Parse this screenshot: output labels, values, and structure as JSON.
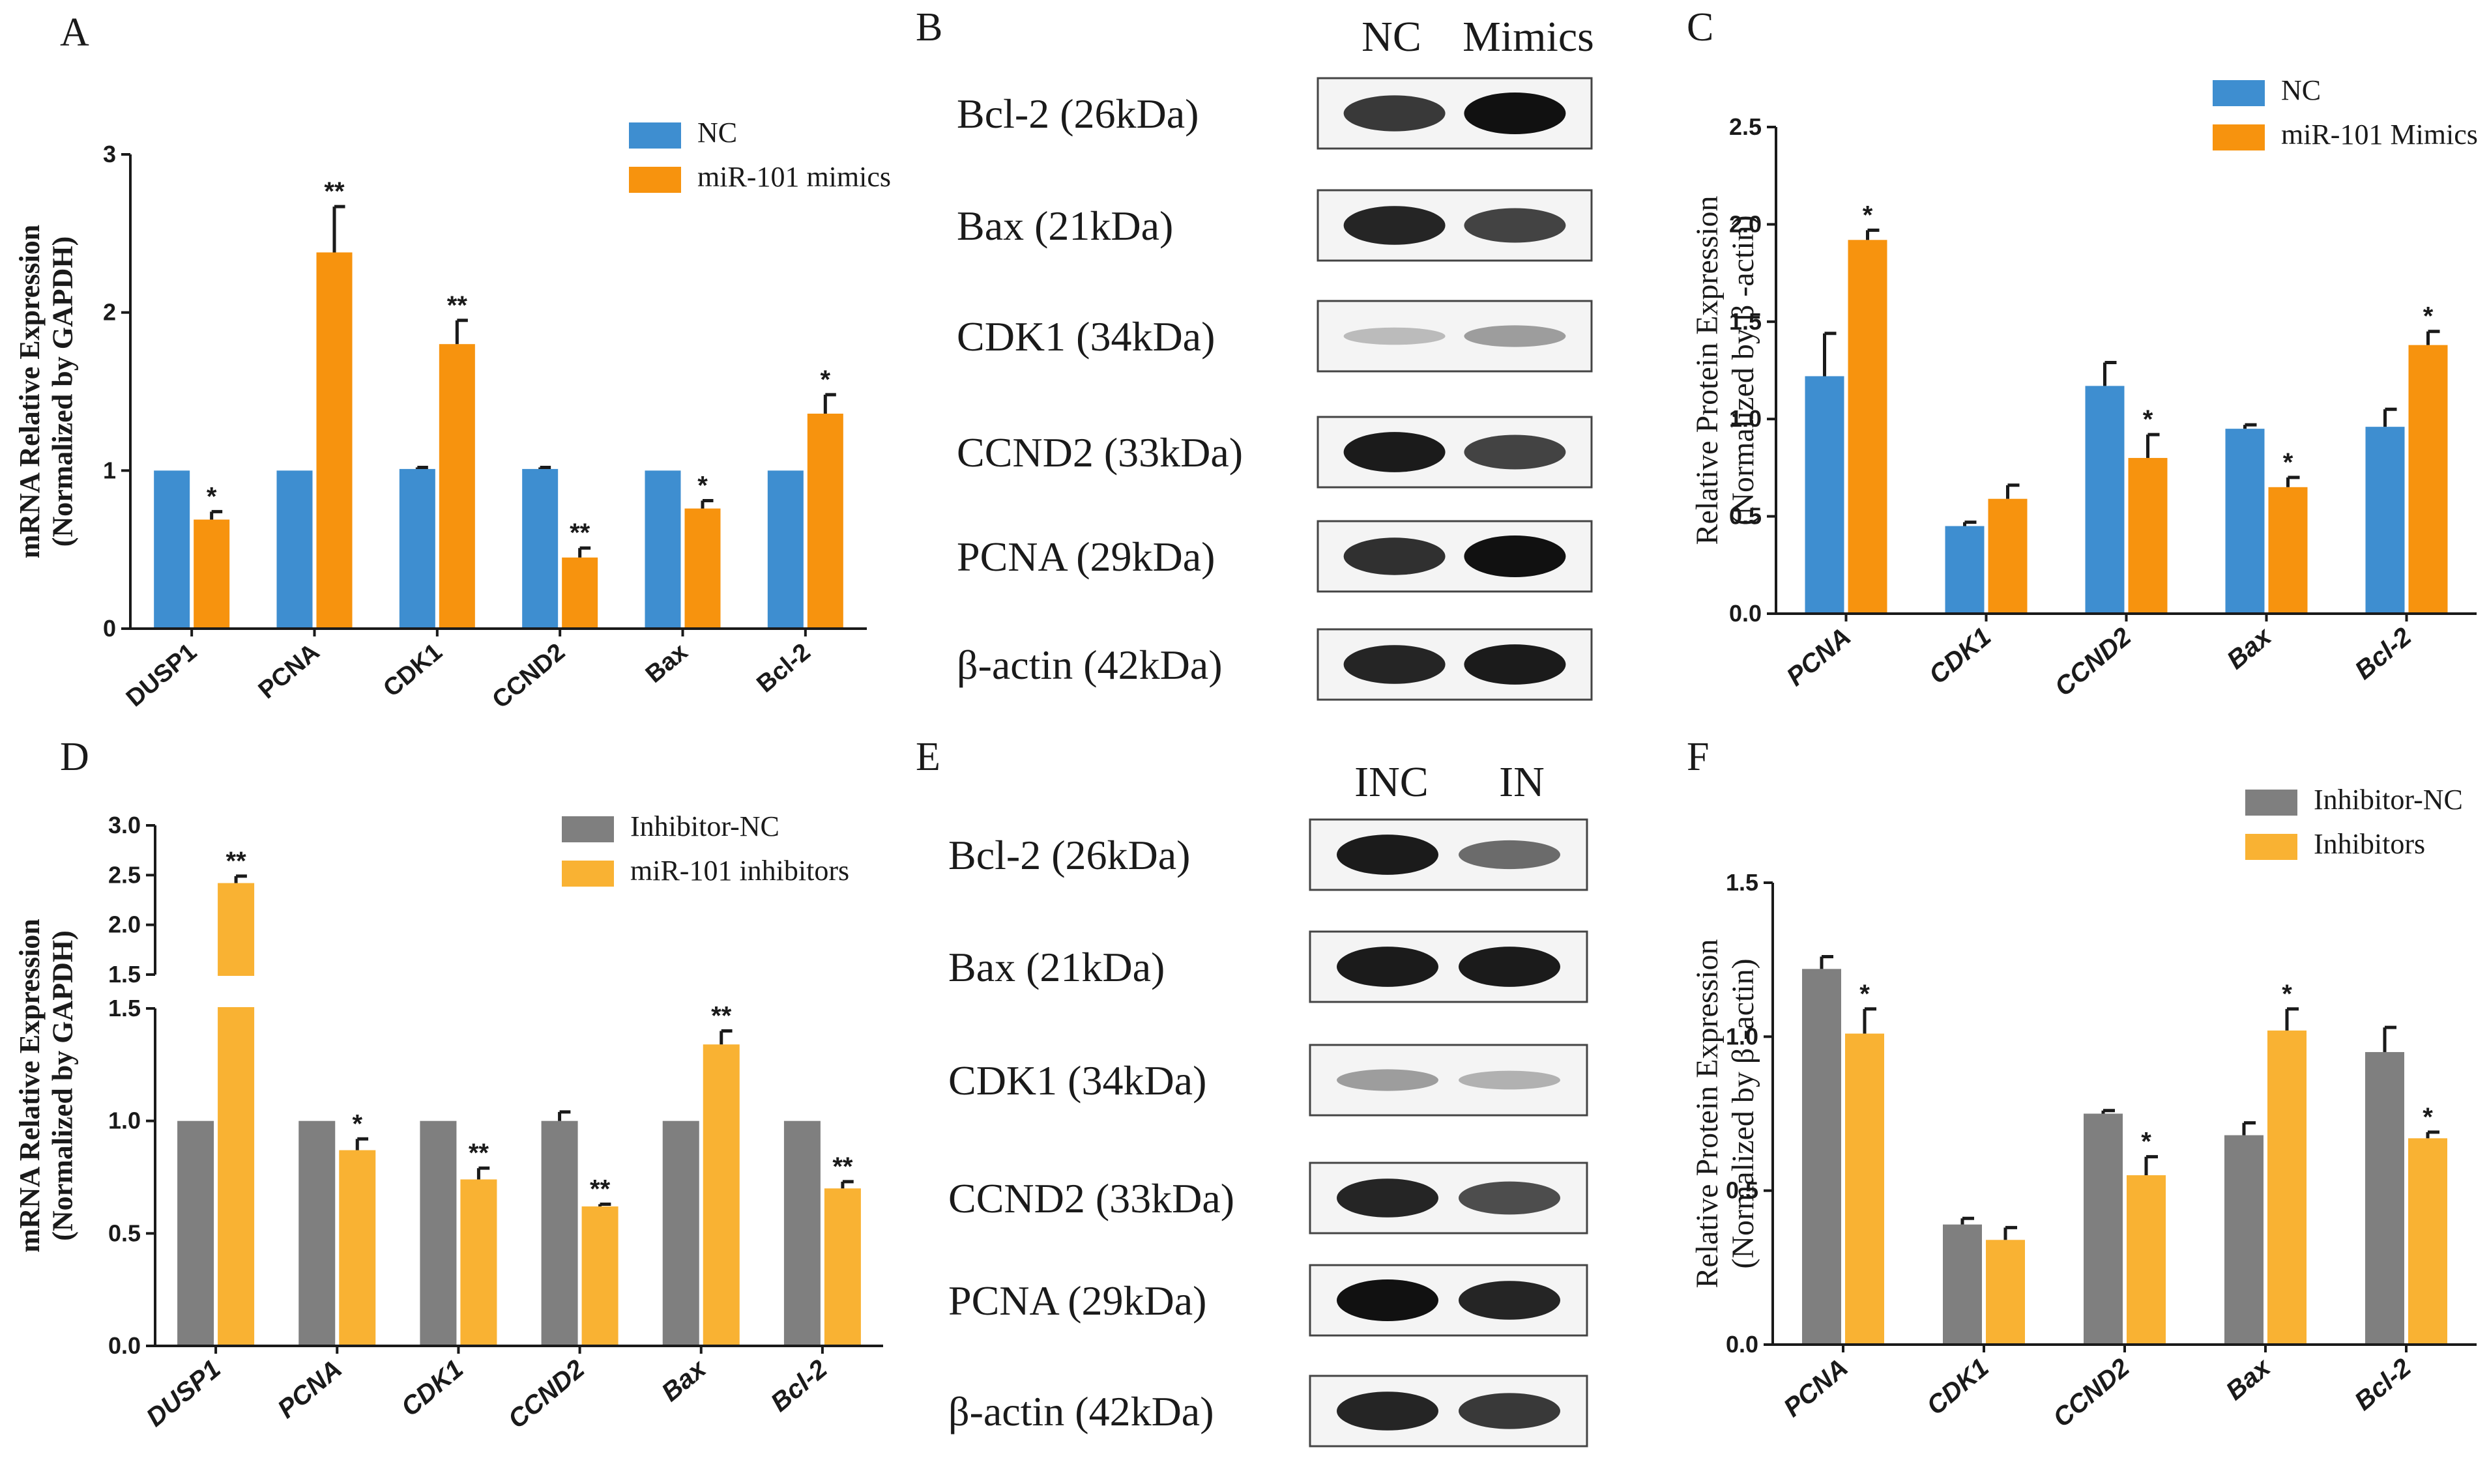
{
  "colors": {
    "nc_blue": "#3E8ED0",
    "mimic_orange": "#F7930E",
    "inhibitor_gray": "#7F7F7F",
    "inhibitor_yellow": "#F9B233",
    "axis": "#1a1a1a",
    "blot_band": "#111111",
    "blot_bg": "#f4f4f4"
  },
  "chart_data": [
    {
      "panel": "A",
      "type": "bar",
      "categories": [
        "DUSP1",
        "PCNA",
        "CDK1",
        "CCND2",
        "Bax",
        "Bcl-2"
      ],
      "ylabel": [
        "mRNA Relative Expression",
        "(Normalized by GAPDH)"
      ],
      "ylim": [
        0,
        3
      ],
      "yticks": [
        "0",
        "1",
        "2",
        "3"
      ],
      "series": [
        {
          "name": "NC",
          "values": [
            1.0,
            1.0,
            1.01,
            1.01,
            1.0,
            1.0
          ],
          "errors": [
            0.0,
            0.0,
            0.01,
            0.01,
            0.0,
            0.0
          ]
        },
        {
          "name": "miR-101 mimics",
          "values": [
            0.69,
            2.38,
            1.8,
            0.45,
            0.76,
            1.36
          ],
          "errors": [
            0.05,
            0.29,
            0.15,
            0.06,
            0.05,
            0.12
          ]
        }
      ],
      "significance": [
        "*",
        "**",
        "**",
        "**",
        "*",
        "*"
      ]
    },
    {
      "panel": "C",
      "type": "bar",
      "categories": [
        "PCNA",
        "CDK1",
        "CCND2",
        "Bax",
        "Bcl-2"
      ],
      "ylabel": [
        "Relative Protein Expression",
        "(Normalized by β -actin)"
      ],
      "ylim": [
        0,
        2.5
      ],
      "yticks": [
        "0.0",
        "0.5",
        "1.0",
        "1.5",
        "2.0",
        "2.5"
      ],
      "series": [
        {
          "name": "NC",
          "values": [
            1.22,
            0.45,
            1.17,
            0.95,
            0.96
          ],
          "errors": [
            0.22,
            0.02,
            0.12,
            0.02,
            0.09
          ]
        },
        {
          "name": "miR-101 Mimics",
          "values": [
            1.92,
            0.59,
            0.8,
            0.65,
            1.38
          ],
          "errors": [
            0.05,
            0.07,
            0.12,
            0.05,
            0.07
          ]
        }
      ],
      "significance": [
        "*",
        "",
        "*",
        "*",
        "*"
      ]
    },
    {
      "panel": "D",
      "type": "bar",
      "categories": [
        "DUSP1",
        "PCNA",
        "CDK1",
        "CCND2",
        "Bax",
        "Bcl-2"
      ],
      "ylabel": [
        "mRNA Relative Expression",
        "(Normalized by GAPDH)"
      ],
      "ylim": [
        0,
        3.0
      ],
      "axis_break": [
        1.5,
        1.5
      ],
      "yticks_lower": [
        "0.0",
        "0.5",
        "1.0",
        "1.5"
      ],
      "yticks_upper": [
        "1.5",
        "2.0",
        "2.5",
        "3.0"
      ],
      "series": [
        {
          "name": "Inhibitor-NC",
          "values": [
            1.0,
            1.0,
            1.0,
            1.0,
            1.0,
            1.0
          ],
          "errors": [
            0.0,
            0.0,
            0.0,
            0.04,
            0.0,
            0.0
          ]
        },
        {
          "name": "miR-101 inhibitors",
          "values": [
            2.42,
            0.87,
            0.74,
            0.62,
            1.34,
            0.7
          ],
          "errors": [
            0.07,
            0.05,
            0.05,
            0.01,
            0.06,
            0.03
          ]
        }
      ],
      "significance": [
        "**",
        "*",
        "**",
        "**",
        "**",
        "**"
      ]
    },
    {
      "panel": "F",
      "type": "bar",
      "categories": [
        "PCNA",
        "CDK1",
        "CCND2",
        "Bax",
        "Bcl-2"
      ],
      "ylabel": [
        "Relative Protein Expression",
        "(Normalized by β -actin)"
      ],
      "ylim": [
        0,
        1.5
      ],
      "yticks": [
        "0.0",
        "0.5",
        "1.0",
        "1.5"
      ],
      "series": [
        {
          "name": "Inhibitor-NC",
          "values": [
            1.22,
            0.39,
            0.75,
            0.68,
            0.95
          ],
          "errors": [
            0.04,
            0.02,
            0.01,
            0.04,
            0.08
          ]
        },
        {
          "name": "Inhibitors",
          "values": [
            1.01,
            0.34,
            0.55,
            1.02,
            0.67
          ],
          "errors": [
            0.08,
            0.04,
            0.06,
            0.07,
            0.02
          ]
        }
      ],
      "significance": [
        "*",
        "",
        "*",
        "*",
        "*"
      ]
    }
  ],
  "blots": [
    {
      "panel": "B",
      "lanes": [
        "NC",
        "Mimics"
      ],
      "rows": [
        "Bcl-2 (26kDa)",
        "Bax (21kDa)",
        "CDK1 (34kDa)",
        "CCND2 (33kDa)",
        "PCNA (29kDa)",
        "β-actin (42kDa)"
      ],
      "band_intensity": [
        [
          0.8,
          1.0
        ],
        [
          0.9,
          0.75
        ],
        [
          0.15,
          0.3
        ],
        [
          0.95,
          0.75
        ],
        [
          0.85,
          1.0
        ],
        [
          0.9,
          0.95
        ]
      ]
    },
    {
      "panel": "E",
      "lanes": [
        "INC",
        "IN"
      ],
      "rows": [
        "Bcl-2 (26kDa)",
        "Bax (21kDa)",
        "CDK1 (34kDa)",
        "CCND2 (33kDa)",
        "PCNA (29kDa)",
        "β-actin (42kDa)"
      ],
      "band_intensity": [
        [
          0.95,
          0.55
        ],
        [
          0.95,
          0.95
        ],
        [
          0.3,
          0.2
        ],
        [
          0.9,
          0.7
        ],
        [
          1.0,
          0.9
        ],
        [
          0.9,
          0.8
        ]
      ]
    }
  ]
}
